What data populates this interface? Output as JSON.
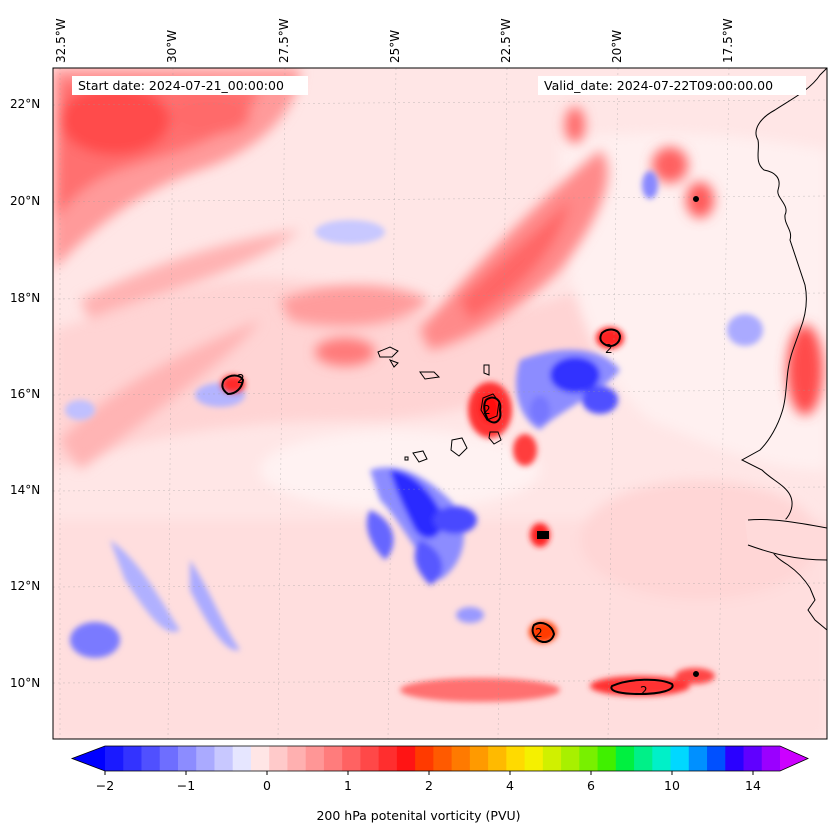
{
  "header": {
    "start_label": "Start date: 2024-07-21_00:00:00",
    "valid_label": "Valid_date: 2024-07-22T09:00:00.00"
  },
  "map": {
    "longitude_labels": [
      "32.5°W",
      "30°W",
      "27.5°W",
      "25°W",
      "22.5°W",
      "20°W",
      "17.5°W"
    ],
    "latitude_labels": [
      "22°N",
      "20°N",
      "18°N",
      "16°N",
      "14°N",
      "12°N",
      "10°N"
    ],
    "contour_label": "2",
    "contour_labels": [
      "2",
      "2",
      "2",
      "2",
      "2"
    ]
  },
  "colorbar": {
    "label": "200 hPa potenital vorticity (PVU)",
    "ticks": [
      "−2",
      "−1",
      "0",
      "1",
      "2",
      "4",
      "6",
      "10",
      "14"
    ],
    "colors": [
      "#1a1aff",
      "#3333ff",
      "#5050ff",
      "#6e6eff",
      "#8c8cff",
      "#aaaaff",
      "#c8c8ff",
      "#e6e6ff",
      "#ffe6e6",
      "#ffcaca",
      "#ffb0b0",
      "#ff9696",
      "#ff7c7c",
      "#ff6262",
      "#ff4848",
      "#ff2e2e",
      "#ff1414",
      "#ff3a00",
      "#ff5a00",
      "#ff7a00",
      "#ff9a00",
      "#ffba00",
      "#ffda00",
      "#f5f000",
      "#d0f000",
      "#a8f000",
      "#78f000",
      "#40f000",
      "#00f040",
      "#00f088",
      "#00f0c8",
      "#00d8ff",
      "#0090ff",
      "#0050ff",
      "#2a00ff",
      "#6000ff",
      "#9a00ff"
    ],
    "min_color": "#0000ff",
    "max_color": "#cc00ff"
  }
}
